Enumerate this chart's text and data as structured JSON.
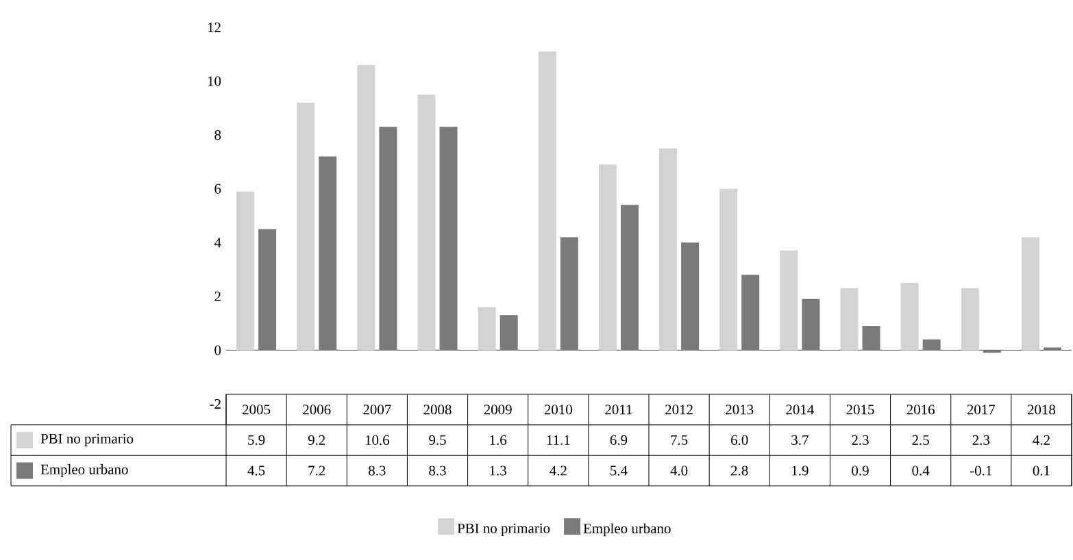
{
  "chart_data": {
    "type": "bar",
    "categories": [
      "2005",
      "2006",
      "2007",
      "2008",
      "2009",
      "2010",
      "2011",
      "2012",
      "2013",
      "2014",
      "2015",
      "2016",
      "2017",
      "2018"
    ],
    "series": [
      {
        "name": "PBI no primario",
        "color": "#d3d3d3",
        "values": [
          5.9,
          9.2,
          10.6,
          9.5,
          1.6,
          11.1,
          6.9,
          7.5,
          6.0,
          3.7,
          2.3,
          2.5,
          2.3,
          4.2
        ],
        "value_labels": [
          "5.9",
          "9.2",
          "10.6",
          "9.5",
          "1.6",
          "11.1",
          "6.9",
          "7.5",
          "6.0",
          "3.7",
          "2.3",
          "2.5",
          "2.3",
          "4.2"
        ]
      },
      {
        "name": "Empleo urbano",
        "color": "#7a7a7a",
        "values": [
          4.5,
          7.2,
          8.3,
          8.3,
          1.3,
          4.2,
          5.4,
          4.0,
          2.8,
          1.9,
          0.9,
          0.4,
          -0.1,
          0.1
        ],
        "value_labels": [
          "4.5",
          "7.2",
          "8.3",
          "8.3",
          "1.3",
          "4.2",
          "5.4",
          "4.0",
          "2.8",
          "1.9",
          "0.9",
          "0.4",
          "-0.1",
          "0.1"
        ]
      }
    ],
    "ylim": [
      -2,
      12
    ],
    "yticks": [
      -2,
      0,
      2,
      4,
      6,
      8,
      10,
      12
    ],
    "legend": "bottom"
  }
}
